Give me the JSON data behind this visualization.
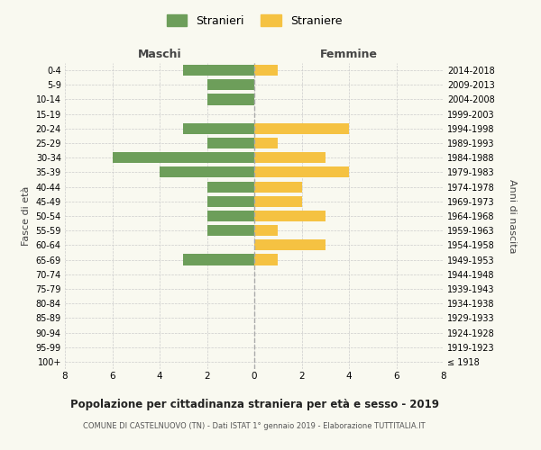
{
  "age_groups": [
    "100+",
    "95-99",
    "90-94",
    "85-89",
    "80-84",
    "75-79",
    "70-74",
    "65-69",
    "60-64",
    "55-59",
    "50-54",
    "45-49",
    "40-44",
    "35-39",
    "30-34",
    "25-29",
    "20-24",
    "15-19",
    "10-14",
    "5-9",
    "0-4"
  ],
  "birth_years": [
    "≤ 1918",
    "1919-1923",
    "1924-1928",
    "1929-1933",
    "1934-1938",
    "1939-1943",
    "1944-1948",
    "1949-1953",
    "1954-1958",
    "1959-1963",
    "1964-1968",
    "1969-1973",
    "1974-1978",
    "1979-1983",
    "1984-1988",
    "1989-1993",
    "1994-1998",
    "1999-2003",
    "2004-2008",
    "2009-2013",
    "2014-2018"
  ],
  "maschi": [
    0,
    0,
    0,
    0,
    0,
    0,
    0,
    3,
    0,
    2,
    2,
    2,
    2,
    4,
    6,
    2,
    3,
    0,
    2,
    2,
    3
  ],
  "femmine": [
    0,
    0,
    0,
    0,
    0,
    0,
    0,
    1,
    3,
    1,
    3,
    2,
    2,
    4,
    3,
    1,
    4,
    0,
    0,
    0,
    1
  ],
  "maschi_color": "#6d9e5a",
  "femmine_color": "#f5c242",
  "xlim": 8,
  "title": "Popolazione per cittadinanza straniera per età e sesso - 2019",
  "subtitle": "COMUNE DI CASTELNUOVO (TN) - Dati ISTAT 1° gennaio 2019 - Elaborazione TUTTITALIA.IT",
  "ylabel_left": "Fasce di età",
  "ylabel_right": "Anni di nascita",
  "xlabel_maschi": "Maschi",
  "xlabel_femmine": "Femmine",
  "legend_stranieri": "Stranieri",
  "legend_straniere": "Straniere",
  "background_color": "#f9f9f0",
  "grid_color": "#cccccc"
}
